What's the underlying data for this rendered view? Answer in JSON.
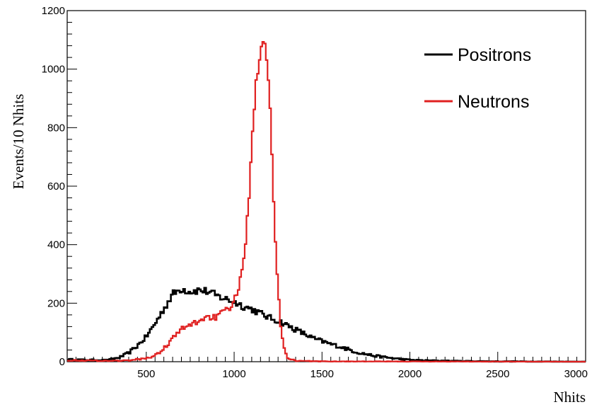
{
  "chart_data": {
    "type": "line",
    "title": "",
    "xlabel": "Nhits",
    "ylabel": "Events/10 Nhits",
    "xlim": [
      50,
      3000
    ],
    "ylim": [
      0,
      1200
    ],
    "x_ticks": [
      500,
      1000,
      1500,
      2000,
      2500,
      3000
    ],
    "y_ticks": [
      0,
      200,
      400,
      600,
      800,
      1000,
      1200
    ],
    "grid": false,
    "legend_position": "top-right",
    "bin_width": 10,
    "series": [
      {
        "name": "Positrons",
        "color": "#000000",
        "points": [
          [
            50,
            8
          ],
          [
            150,
            6
          ],
          [
            200,
            6
          ],
          [
            280,
            5
          ],
          [
            300,
            8
          ],
          [
            350,
            15
          ],
          [
            400,
            30
          ],
          [
            450,
            55
          ],
          [
            500,
            85
          ],
          [
            550,
            130
          ],
          [
            600,
            180
          ],
          [
            650,
            230
          ],
          [
            700,
            250
          ],
          [
            750,
            240
          ],
          [
            800,
            245
          ],
          [
            850,
            240
          ],
          [
            900,
            225
          ],
          [
            950,
            215
          ],
          [
            1000,
            205
          ],
          [
            1050,
            190
          ],
          [
            1100,
            180
          ],
          [
            1150,
            165
          ],
          [
            1200,
            150
          ],
          [
            1250,
            140
          ],
          [
            1300,
            125
          ],
          [
            1350,
            110
          ],
          [
            1400,
            95
          ],
          [
            1450,
            80
          ],
          [
            1500,
            70
          ],
          [
            1550,
            60
          ],
          [
            1600,
            52
          ],
          [
            1650,
            42
          ],
          [
            1700,
            32
          ],
          [
            1750,
            26
          ],
          [
            1800,
            20
          ],
          [
            1850,
            16
          ],
          [
            1900,
            12
          ],
          [
            1950,
            9
          ],
          [
            2000,
            6
          ],
          [
            2100,
            4
          ],
          [
            2200,
            3
          ],
          [
            2300,
            2
          ],
          [
            2500,
            1
          ],
          [
            3000,
            0
          ]
        ]
      },
      {
        "name": "Neutrons",
        "color": "#e02020",
        "points": [
          [
            50,
            5
          ],
          [
            150,
            4
          ],
          [
            300,
            3
          ],
          [
            400,
            4
          ],
          [
            450,
            8
          ],
          [
            500,
            12
          ],
          [
            550,
            20
          ],
          [
            600,
            45
          ],
          [
            650,
            80
          ],
          [
            700,
            110
          ],
          [
            750,
            125
          ],
          [
            800,
            140
          ],
          [
            850,
            155
          ],
          [
            900,
            150
          ],
          [
            925,
            165
          ],
          [
            950,
            170
          ],
          [
            1000,
            205
          ],
          [
            1030,
            260
          ],
          [
            1050,
            320
          ],
          [
            1080,
            520
          ],
          [
            1100,
            760
          ],
          [
            1120,
            920
          ],
          [
            1140,
            1040
          ],
          [
            1160,
            1110
          ],
          [
            1170,
            1125
          ],
          [
            1180,
            1080
          ],
          [
            1200,
            940
          ],
          [
            1210,
            820
          ],
          [
            1220,
            600
          ],
          [
            1240,
            350
          ],
          [
            1260,
            150
          ],
          [
            1280,
            60
          ],
          [
            1300,
            15
          ],
          [
            1350,
            3
          ],
          [
            1500,
            1
          ],
          [
            3000,
            0
          ]
        ]
      }
    ]
  },
  "axes": {
    "x_tick_labels": [
      "500",
      "1000",
      "1500",
      "2000",
      "2500",
      "3000"
    ],
    "y_tick_labels": [
      "0",
      "200",
      "400",
      "600",
      "800",
      "1000",
      "1200"
    ],
    "x_title": "Nhits",
    "y_title": "Events/10 Nhits"
  },
  "legend": {
    "items": [
      {
        "label": "Positrons",
        "color": "#000000"
      },
      {
        "label": "Neutrons",
        "color": "#e02020"
      }
    ]
  }
}
